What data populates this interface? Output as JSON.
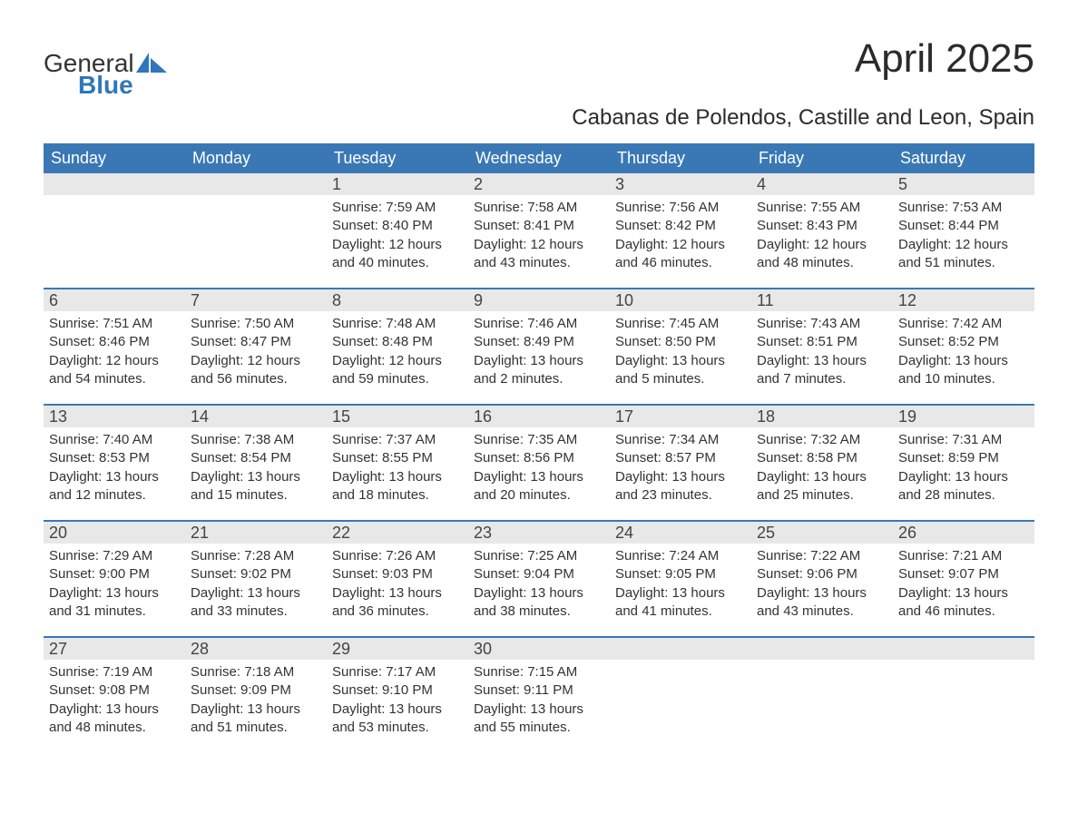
{
  "brand": {
    "part1": "General",
    "part2": "Blue"
  },
  "title": "April 2025",
  "subtitle": "Cabanas de Polendos, Castille and Leon, Spain",
  "colors": {
    "header_bg": "#3a78b5",
    "header_text": "#ffffff",
    "daynum_bg": "#e8e8e8",
    "body_text": "#333333",
    "rule": "#3a78b5",
    "brand_accent": "#2f77bb"
  },
  "typography": {
    "title_fontsize": 44,
    "subtitle_fontsize": 24,
    "header_fontsize": 18,
    "body_fontsize": 15
  },
  "day_labels": [
    "Sunday",
    "Monday",
    "Tuesday",
    "Wednesday",
    "Thursday",
    "Friday",
    "Saturday"
  ],
  "weeks": [
    [
      {
        "day": "",
        "sunrise": "",
        "sunset": "",
        "daylight1": "",
        "daylight2": ""
      },
      {
        "day": "",
        "sunrise": "",
        "sunset": "",
        "daylight1": "",
        "daylight2": ""
      },
      {
        "day": "1",
        "sunrise": "Sunrise: 7:59 AM",
        "sunset": "Sunset: 8:40 PM",
        "daylight1": "Daylight: 12 hours",
        "daylight2": "and 40 minutes."
      },
      {
        "day": "2",
        "sunrise": "Sunrise: 7:58 AM",
        "sunset": "Sunset: 8:41 PM",
        "daylight1": "Daylight: 12 hours",
        "daylight2": "and 43 minutes."
      },
      {
        "day": "3",
        "sunrise": "Sunrise: 7:56 AM",
        "sunset": "Sunset: 8:42 PM",
        "daylight1": "Daylight: 12 hours",
        "daylight2": "and 46 minutes."
      },
      {
        "day": "4",
        "sunrise": "Sunrise: 7:55 AM",
        "sunset": "Sunset: 8:43 PM",
        "daylight1": "Daylight: 12 hours",
        "daylight2": "and 48 minutes."
      },
      {
        "day": "5",
        "sunrise": "Sunrise: 7:53 AM",
        "sunset": "Sunset: 8:44 PM",
        "daylight1": "Daylight: 12 hours",
        "daylight2": "and 51 minutes."
      }
    ],
    [
      {
        "day": "6",
        "sunrise": "Sunrise: 7:51 AM",
        "sunset": "Sunset: 8:46 PM",
        "daylight1": "Daylight: 12 hours",
        "daylight2": "and 54 minutes."
      },
      {
        "day": "7",
        "sunrise": "Sunrise: 7:50 AM",
        "sunset": "Sunset: 8:47 PM",
        "daylight1": "Daylight: 12 hours",
        "daylight2": "and 56 minutes."
      },
      {
        "day": "8",
        "sunrise": "Sunrise: 7:48 AM",
        "sunset": "Sunset: 8:48 PM",
        "daylight1": "Daylight: 12 hours",
        "daylight2": "and 59 minutes."
      },
      {
        "day": "9",
        "sunrise": "Sunrise: 7:46 AM",
        "sunset": "Sunset: 8:49 PM",
        "daylight1": "Daylight: 13 hours",
        "daylight2": "and 2 minutes."
      },
      {
        "day": "10",
        "sunrise": "Sunrise: 7:45 AM",
        "sunset": "Sunset: 8:50 PM",
        "daylight1": "Daylight: 13 hours",
        "daylight2": "and 5 minutes."
      },
      {
        "day": "11",
        "sunrise": "Sunrise: 7:43 AM",
        "sunset": "Sunset: 8:51 PM",
        "daylight1": "Daylight: 13 hours",
        "daylight2": "and 7 minutes."
      },
      {
        "day": "12",
        "sunrise": "Sunrise: 7:42 AM",
        "sunset": "Sunset: 8:52 PM",
        "daylight1": "Daylight: 13 hours",
        "daylight2": "and 10 minutes."
      }
    ],
    [
      {
        "day": "13",
        "sunrise": "Sunrise: 7:40 AM",
        "sunset": "Sunset: 8:53 PM",
        "daylight1": "Daylight: 13 hours",
        "daylight2": "and 12 minutes."
      },
      {
        "day": "14",
        "sunrise": "Sunrise: 7:38 AM",
        "sunset": "Sunset: 8:54 PM",
        "daylight1": "Daylight: 13 hours",
        "daylight2": "and 15 minutes."
      },
      {
        "day": "15",
        "sunrise": "Sunrise: 7:37 AM",
        "sunset": "Sunset: 8:55 PM",
        "daylight1": "Daylight: 13 hours",
        "daylight2": "and 18 minutes."
      },
      {
        "day": "16",
        "sunrise": "Sunrise: 7:35 AM",
        "sunset": "Sunset: 8:56 PM",
        "daylight1": "Daylight: 13 hours",
        "daylight2": "and 20 minutes."
      },
      {
        "day": "17",
        "sunrise": "Sunrise: 7:34 AM",
        "sunset": "Sunset: 8:57 PM",
        "daylight1": "Daylight: 13 hours",
        "daylight2": "and 23 minutes."
      },
      {
        "day": "18",
        "sunrise": "Sunrise: 7:32 AM",
        "sunset": "Sunset: 8:58 PM",
        "daylight1": "Daylight: 13 hours",
        "daylight2": "and 25 minutes."
      },
      {
        "day": "19",
        "sunrise": "Sunrise: 7:31 AM",
        "sunset": "Sunset: 8:59 PM",
        "daylight1": "Daylight: 13 hours",
        "daylight2": "and 28 minutes."
      }
    ],
    [
      {
        "day": "20",
        "sunrise": "Sunrise: 7:29 AM",
        "sunset": "Sunset: 9:00 PM",
        "daylight1": "Daylight: 13 hours",
        "daylight2": "and 31 minutes."
      },
      {
        "day": "21",
        "sunrise": "Sunrise: 7:28 AM",
        "sunset": "Sunset: 9:02 PM",
        "daylight1": "Daylight: 13 hours",
        "daylight2": "and 33 minutes."
      },
      {
        "day": "22",
        "sunrise": "Sunrise: 7:26 AM",
        "sunset": "Sunset: 9:03 PM",
        "daylight1": "Daylight: 13 hours",
        "daylight2": "and 36 minutes."
      },
      {
        "day": "23",
        "sunrise": "Sunrise: 7:25 AM",
        "sunset": "Sunset: 9:04 PM",
        "daylight1": "Daylight: 13 hours",
        "daylight2": "and 38 minutes."
      },
      {
        "day": "24",
        "sunrise": "Sunrise: 7:24 AM",
        "sunset": "Sunset: 9:05 PM",
        "daylight1": "Daylight: 13 hours",
        "daylight2": "and 41 minutes."
      },
      {
        "day": "25",
        "sunrise": "Sunrise: 7:22 AM",
        "sunset": "Sunset: 9:06 PM",
        "daylight1": "Daylight: 13 hours",
        "daylight2": "and 43 minutes."
      },
      {
        "day": "26",
        "sunrise": "Sunrise: 7:21 AM",
        "sunset": "Sunset: 9:07 PM",
        "daylight1": "Daylight: 13 hours",
        "daylight2": "and 46 minutes."
      }
    ],
    [
      {
        "day": "27",
        "sunrise": "Sunrise: 7:19 AM",
        "sunset": "Sunset: 9:08 PM",
        "daylight1": "Daylight: 13 hours",
        "daylight2": "and 48 minutes."
      },
      {
        "day": "28",
        "sunrise": "Sunrise: 7:18 AM",
        "sunset": "Sunset: 9:09 PM",
        "daylight1": "Daylight: 13 hours",
        "daylight2": "and 51 minutes."
      },
      {
        "day": "29",
        "sunrise": "Sunrise: 7:17 AM",
        "sunset": "Sunset: 9:10 PM",
        "daylight1": "Daylight: 13 hours",
        "daylight2": "and 53 minutes."
      },
      {
        "day": "30",
        "sunrise": "Sunrise: 7:15 AM",
        "sunset": "Sunset: 9:11 PM",
        "daylight1": "Daylight: 13 hours",
        "daylight2": "and 55 minutes."
      },
      {
        "day": "",
        "sunrise": "",
        "sunset": "",
        "daylight1": "",
        "daylight2": ""
      },
      {
        "day": "",
        "sunrise": "",
        "sunset": "",
        "daylight1": "",
        "daylight2": ""
      },
      {
        "day": "",
        "sunrise": "",
        "sunset": "",
        "daylight1": "",
        "daylight2": ""
      }
    ]
  ]
}
